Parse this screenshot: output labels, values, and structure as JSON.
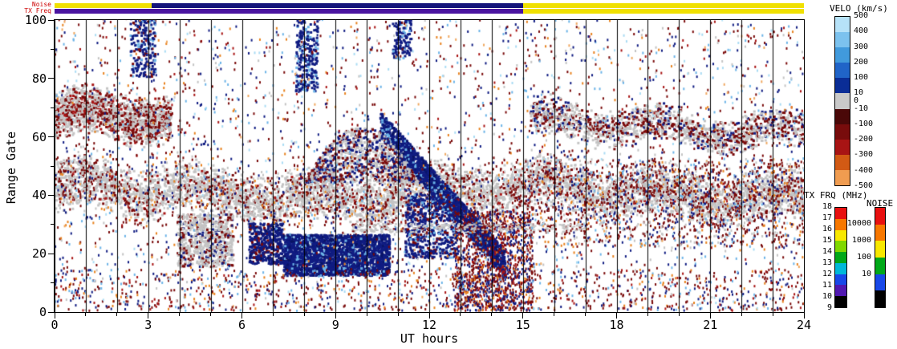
{
  "chart_data": {
    "type": "heatmap",
    "title": "",
    "xlabel": "UT hours",
    "ylabel": "Range Gate",
    "xlim": [
      0,
      24
    ],
    "ylim": [
      0,
      100
    ],
    "x_ticks": [
      0,
      3,
      6,
      9,
      12,
      15,
      18,
      21,
      24
    ],
    "x_minor_step": 1,
    "y_ticks": [
      0,
      20,
      40,
      60,
      80,
      100
    ],
    "y_minor_step": 10,
    "grid": "vertical black line every 1 hour across full plot height",
    "background": "#ffffff",
    "top_bars": {
      "noise_label": "Noise",
      "txfreq_label": "TX Freq",
      "label_color": "#cc0000",
      "noise_segments": [
        {
          "t0": 0,
          "t1": 3.1,
          "color": "#f0e000"
        },
        {
          "t0": 3.1,
          "t1": 15.0,
          "color": "#14147a"
        },
        {
          "t0": 15.0,
          "t1": 24,
          "color": "#f0e000"
        }
      ],
      "txfreq_segments": [
        {
          "t0": 0,
          "t1": 15.0,
          "color": "#4a14a0"
        },
        {
          "t0": 15.0,
          "t1": 24,
          "color": "#f0e000"
        }
      ]
    },
    "colorbars": {
      "velocity": {
        "title": "VELO (km/s)",
        "boundary_labels": [
          "500",
          "400",
          "300",
          "200",
          "100",
          "10",
          "-10",
          "-100",
          "-200",
          "-300",
          "-400",
          "-500"
        ],
        "zero_label": "0",
        "segments": [
          "#b6e2f8",
          "#7cc2ee",
          "#419adc",
          "#2064c8",
          "#0a2d96",
          "#c9c9c9",
          "#4a0808",
          "#780c0c",
          "#a81414",
          "#d25a14",
          "#f09c50"
        ]
      },
      "tx_freq": {
        "title": "TX FRQ (MHz)",
        "scale_labels": [
          "18",
          "17",
          "16",
          "15",
          "14",
          "13",
          "12",
          "11",
          "10",
          "9"
        ],
        "segments": [
          "#e81010",
          "#f87800",
          "#f8e800",
          "#80d800",
          "#00a818",
          "#00b8d8",
          "#1848e8",
          "#5018b0",
          "#000000"
        ]
      },
      "noise": {
        "title": "NOISE",
        "scale_labels": [
          "10000",
          "1000",
          "100",
          "10"
        ],
        "segments": [
          "#e81010",
          "#f87800",
          "#f8e800",
          "#00a818",
          "#1848e8",
          "#000000"
        ]
      }
    },
    "features": [
      {
        "name": "ground-scatter-band",
        "shape": "band",
        "t": [
          0,
          24
        ],
        "gates": [
          31,
          50
        ],
        "count": 5200,
        "size": [
          3,
          3
        ],
        "palette": [
          [
            "#c4c4c4",
            86
          ],
          [
            "#7a0a0a",
            10
          ],
          [
            "#a81414",
            4
          ]
        ]
      },
      {
        "name": "band-red-fringe",
        "shape": "band",
        "t": [
          0,
          24
        ],
        "gates": [
          25,
          55
        ],
        "count": 1600,
        "size": [
          2,
          3
        ],
        "palette": [
          [
            "#7a0a0a",
            52
          ],
          [
            "#c4c4c4",
            24
          ],
          [
            "#101c82",
            14
          ],
          [
            "#e8821e",
            10
          ]
        ]
      },
      {
        "name": "left-gray-cluster",
        "shape": "band",
        "t": [
          0,
          3.7
        ],
        "gates": [
          56,
          74
        ],
        "count": 1500,
        "size": [
          3,
          3
        ],
        "palette": [
          [
            "#c4c4c4",
            60
          ],
          [
            "#7a0a0a",
            31
          ],
          [
            "#a81414",
            9
          ]
        ]
      },
      {
        "name": "right-gray-cluster",
        "shape": "band",
        "t": [
          15.2,
          24
        ],
        "gates": [
          56,
          70
        ],
        "count": 1500,
        "size": [
          3,
          3
        ],
        "palette": [
          [
            "#c4c4c4",
            55
          ],
          [
            "#7a0a0a",
            32
          ],
          [
            "#101c82",
            13
          ]
        ]
      },
      {
        "name": "gray-blob-early-low",
        "shape": "blob",
        "t": [
          3.9,
          5.7
        ],
        "gates": [
          15,
          33
        ],
        "count": 700,
        "size": [
          3,
          3
        ],
        "palette": [
          [
            "#c4c4c4",
            68
          ],
          [
            "#7a0a0a",
            22
          ],
          [
            "#101c82",
            10
          ]
        ]
      },
      {
        "name": "navy-pre-blob",
        "shape": "blob",
        "t": [
          6.2,
          7.3
        ],
        "gates": [
          16,
          30
        ],
        "count": 420,
        "size": [
          3,
          3
        ],
        "palette": [
          [
            "#101c82",
            80
          ],
          [
            "#0a1464",
            10
          ],
          [
            "#7a0a0a",
            10
          ]
        ]
      },
      {
        "name": "navy-patch-low",
        "shape": "blob",
        "t": [
          7.3,
          10.7
        ],
        "gates": [
          12,
          26
        ],
        "count": 2400,
        "size": [
          3,
          3
        ],
        "palette": [
          [
            "#101c82",
            78
          ],
          [
            "#0a1464",
            15
          ],
          [
            "#6cb4e8",
            7
          ]
        ]
      },
      {
        "name": "navy-diagonal",
        "shape": "diag",
        "t": [
          10.4,
          14.4
        ],
        "gates": [
          64,
          16
        ],
        "gw": 9,
        "count": 1900,
        "size": [
          3,
          3
        ],
        "palette": [
          [
            "#101c82",
            72
          ],
          [
            "#0a1464",
            18
          ],
          [
            "#6cb4e8",
            10
          ]
        ]
      },
      {
        "name": "mid-hump",
        "shape": "hump",
        "t": [
          8.0,
          11.6
        ],
        "gates": [
          44,
          63
        ],
        "count": 1100,
        "size": [
          3,
          3
        ],
        "palette": [
          [
            "#c4c4c4",
            45
          ],
          [
            "#7a0a0a",
            30
          ],
          [
            "#101c82",
            25
          ]
        ]
      },
      {
        "name": "navy-under-diagonal",
        "shape": "blob",
        "t": [
          11.2,
          12.9
        ],
        "gates": [
          18,
          40
        ],
        "count": 650,
        "size": [
          3,
          3
        ],
        "palette": [
          [
            "#101c82",
            78
          ],
          [
            "#6cb4e8",
            10
          ],
          [
            "#7a0a0a",
            12
          ]
        ]
      },
      {
        "name": "red-navy-column",
        "shape": "blob",
        "t": [
          12.8,
          15.3
        ],
        "gates": [
          0,
          34
        ],
        "count": 1300,
        "size": [
          2,
          3
        ],
        "palette": [
          [
            "#7a0a0a",
            40
          ],
          [
            "#101c82",
            34
          ],
          [
            "#a81414",
            15
          ],
          [
            "#e8821e",
            11
          ]
        ]
      },
      {
        "name": "right-mid-speckle",
        "shape": "blob",
        "t": [
          15,
          24
        ],
        "gates": [
          22,
          52
        ],
        "count": 1200,
        "size": [
          2,
          3
        ],
        "palette": [
          [
            "#7a0a0a",
            48
          ],
          [
            "#c4c4c4",
            20
          ],
          [
            "#101c82",
            16
          ],
          [
            "#e8821e",
            8
          ],
          [
            "#6cb4e8",
            8
          ]
        ]
      },
      {
        "name": "thin-gray-line",
        "shape": "blob",
        "t": [
          9.5,
          17
        ],
        "gates": [
          27,
          30
        ],
        "count": 320,
        "size": [
          3,
          2
        ],
        "palette": [
          [
            "#c4c4c4",
            88
          ],
          [
            "#7a0a0a",
            12
          ]
        ]
      },
      {
        "name": "bottom-speckle",
        "shape": "blob",
        "t": [
          0,
          24
        ],
        "gates": [
          0,
          14
        ],
        "count": 900,
        "size": [
          2,
          3
        ],
        "palette": [
          [
            "#7a0a0a",
            44
          ],
          [
            "#101c82",
            20
          ],
          [
            "#e8821e",
            12
          ],
          [
            "#6cb4e8",
            10
          ],
          [
            "#a81414",
            14
          ]
        ]
      },
      {
        "name": "top-navy-patch-1",
        "shape": "blob",
        "t": [
          7.7,
          8.4
        ],
        "gates": [
          75,
          100
        ],
        "count": 260,
        "size": [
          3,
          3
        ],
        "palette": [
          [
            "#101c82",
            80
          ],
          [
            "#6cb4e8",
            20
          ]
        ]
      },
      {
        "name": "top-navy-patch-2",
        "shape": "blob",
        "t": [
          2.4,
          3.2
        ],
        "gates": [
          80,
          100
        ],
        "count": 200,
        "size": [
          3,
          3
        ],
        "palette": [
          [
            "#101c82",
            75
          ],
          [
            "#6cb4e8",
            15
          ],
          [
            "#7a0a0a",
            10
          ]
        ]
      },
      {
        "name": "top-navy-patch-3",
        "shape": "blob",
        "t": [
          10.8,
          11.4
        ],
        "gates": [
          86,
          100
        ],
        "count": 120,
        "size": [
          3,
          3
        ],
        "palette": [
          [
            "#101c82",
            85
          ],
          [
            "#6cb4e8",
            15
          ]
        ]
      },
      {
        "name": "global-speckle",
        "shape": "blob",
        "t": [
          0,
          24
        ],
        "gates": [
          0,
          100
        ],
        "count": 3000,
        "size": [
          2,
          3
        ],
        "palette": [
          [
            "#7a0a0a",
            30
          ],
          [
            "#101c82",
            25
          ],
          [
            "#6cb4e8",
            12
          ],
          [
            "#aadcf4",
            8
          ],
          [
            "#e8821e",
            8
          ],
          [
            "#a81414",
            7
          ],
          [
            "#c4c4c4",
            6
          ],
          [
            "#f0a860",
            4
          ]
        ]
      }
    ]
  }
}
